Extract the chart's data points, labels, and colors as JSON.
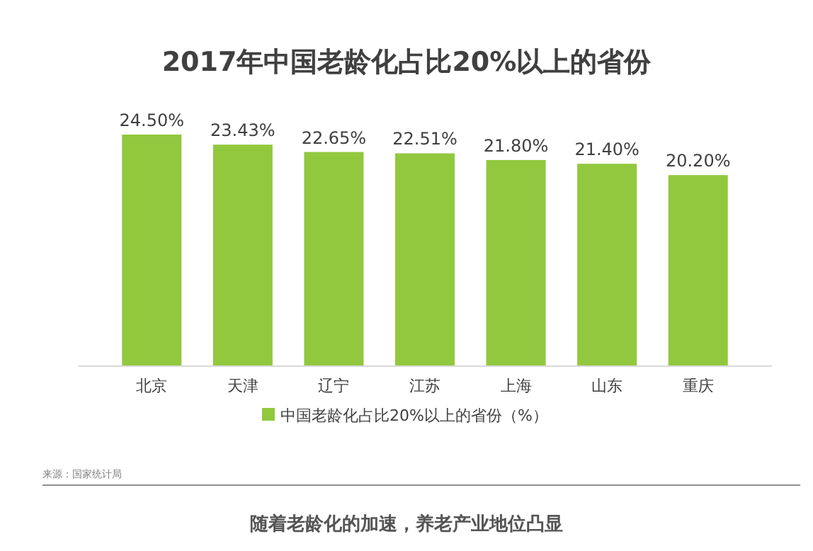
{
  "chart_data": {
    "type": "bar",
    "title": "2017年中国老龄化占比20%以上的省份",
    "categories": [
      "北京",
      "天津",
      "辽宁",
      "江苏",
      "上海",
      "山东",
      "重庆"
    ],
    "series": [
      {
        "name": "中国老龄化占比20%以上的省份（%）",
        "color": "#92c83e",
        "values": [
          24.5,
          23.43,
          22.65,
          22.51,
          21.8,
          21.4,
          20.2
        ],
        "value_labels": [
          "24.50%",
          "23.43%",
          "22.65%",
          "22.51%",
          "21.80%",
          "21.40%",
          "20.20%"
        ]
      }
    ],
    "legend": "bottom",
    "annotations": [
      "来源：国家统计局",
      "随着老龄化的加速，养老产业地位凸显"
    ]
  }
}
